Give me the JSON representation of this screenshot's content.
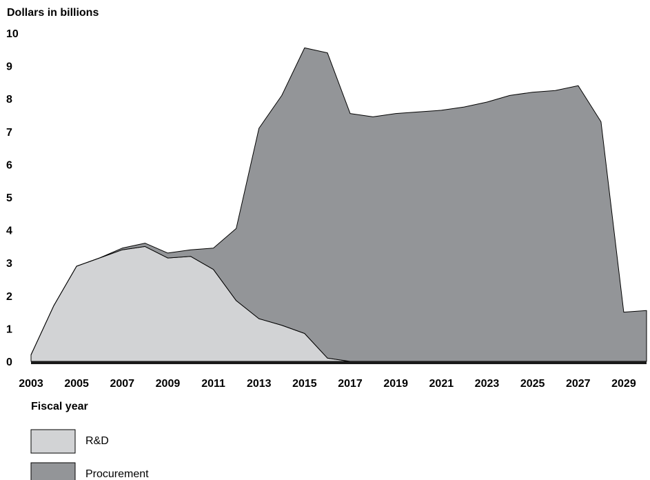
{
  "chart_data": {
    "type": "area",
    "stacked": true,
    "ylabel": "Dollars in billions",
    "xlabel": "Fiscal year",
    "ylim": [
      0,
      10
    ],
    "xlim": [
      2003,
      2030
    ],
    "y_ticks": [
      "0",
      "1",
      "2",
      "3",
      "4",
      "5",
      "6",
      "7",
      "8",
      "9",
      "10"
    ],
    "x_ticks": [
      "2003",
      "2005",
      "2007",
      "2009",
      "2011",
      "2013",
      "2015",
      "2017",
      "2019",
      "2021",
      "2023",
      "2025",
      "2027",
      "2029"
    ],
    "legend_position": "bottom-left",
    "x": [
      2003,
      2004,
      2005,
      2006,
      2007,
      2008,
      2009,
      2010,
      2011,
      2012,
      2013,
      2014,
      2015,
      2016,
      2017,
      2018,
      2019,
      2020,
      2021,
      2022,
      2023,
      2024,
      2025,
      2026,
      2027,
      2028,
      2029,
      2030
    ],
    "series": [
      {
        "name": "R&D",
        "color": "#d2d3d5",
        "values": [
          0.2,
          1.7,
          2.9,
          3.15,
          3.4,
          3.5,
          3.15,
          3.2,
          2.8,
          1.85,
          1.3,
          1.1,
          0.85,
          0.1,
          0.0,
          0.0,
          0.0,
          0.0,
          0.0,
          0.0,
          0.0,
          0.0,
          0.0,
          0.0,
          0.0,
          0.0,
          0.0,
          0.0
        ]
      },
      {
        "name": "Procurement",
        "color": "#939598",
        "values": [
          0.0,
          0.0,
          0.0,
          0.0,
          0.05,
          0.1,
          0.15,
          0.2,
          0.65,
          2.2,
          5.8,
          7.0,
          8.7,
          9.3,
          7.55,
          7.45,
          7.55,
          7.6,
          7.65,
          7.75,
          7.9,
          8.1,
          8.2,
          8.25,
          8.4,
          7.3,
          1.5,
          1.55
        ]
      }
    ]
  }
}
